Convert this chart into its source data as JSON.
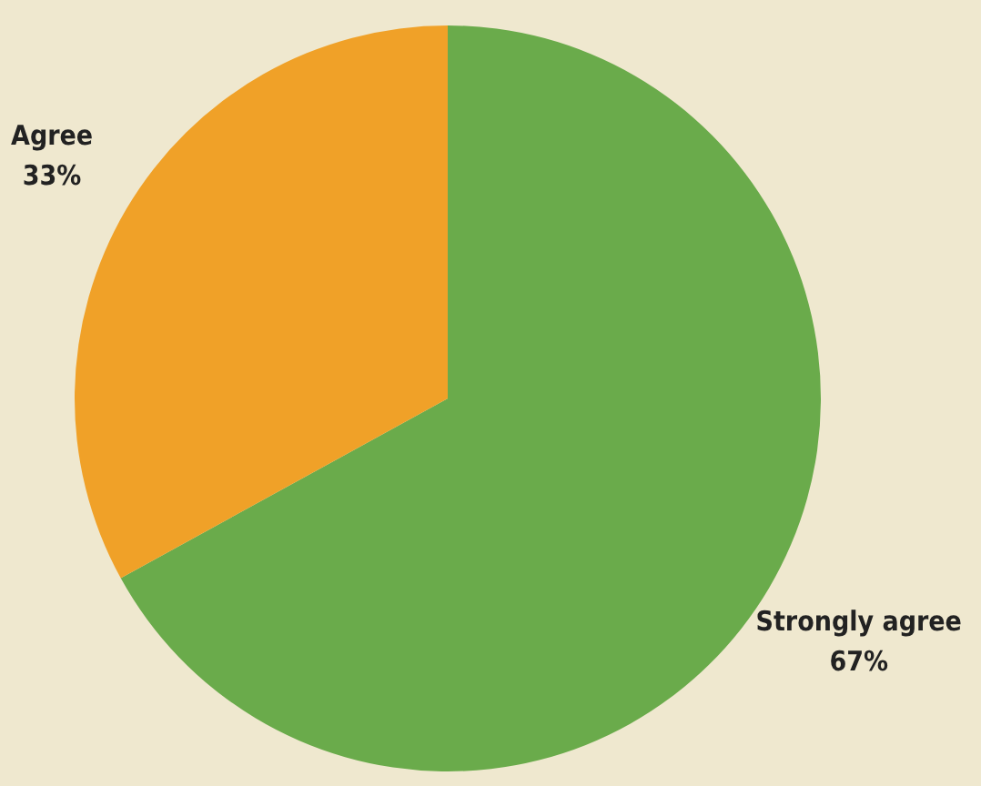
{
  "chart_data": {
    "type": "pie",
    "categories": [
      "Strongly agree",
      "Agree"
    ],
    "values": [
      67,
      33
    ],
    "colors": [
      "#6aab4b",
      "#f0a128"
    ],
    "value_labels": [
      "67%",
      "33%"
    ],
    "legend": false
  }
}
